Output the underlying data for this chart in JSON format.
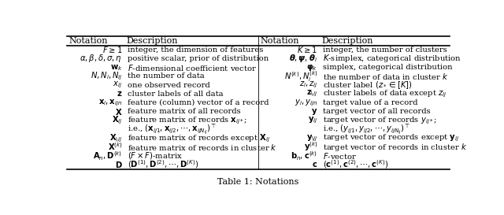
{
  "title": "Table 1: Notations",
  "left_rows": [
    [
      "$F \\geq 1$",
      "integer, the dimension of features"
    ],
    [
      "$\\alpha, \\beta, \\delta, \\sigma, \\eta$",
      "positive scalar, prior of distribution"
    ],
    [
      "$\\mathbf{w}_k$",
      "$F$-dimensional coefficient vector"
    ],
    [
      "$N, N_i, N_{ij}$",
      "the number of data"
    ],
    [
      "$x_{ij}$",
      "one observed record"
    ],
    [
      "$\\mathbf{z}$",
      "cluster labels of all data"
    ],
    [
      "$\\mathbf{x}_i, \\mathbf{x}_{ijn}$",
      "feature (column) vector of a record"
    ],
    [
      "$\\mathbf{X}$",
      "feature matrix of all records"
    ],
    [
      "$\\mathbf{X}_{ij}$",
      "feature matrix of records $\\mathbf{x}_{ij*}$;"
    ],
    [
      "",
      "i.e., $(\\mathbf{x}_{ij1}, \\mathbf{x}_{ij2}, \\cdots, \\mathbf{x}_{ijN_{ij}})^\\top$"
    ],
    [
      "$\\mathbf{X}_{\\backslash ij}$",
      "feature matrix of records except $\\mathbf{X}_{ij}$"
    ],
    [
      "$\\mathbf{X}^{(k)}$",
      "feature matrix of records in cluster $k$"
    ],
    [
      "$\\mathbf{A}_n, \\mathbf{D}^{(k)}$",
      "$(F \\times F)$-matrix"
    ],
    [
      "$\\mathbf{D}$",
      "$(\\mathbf{D}^{(1)}, \\mathbf{D}^{(2)}, \\cdots, \\mathbf{D}^{(K)})$"
    ]
  ],
  "right_rows": [
    [
      "$K \\geq 1$",
      "integer, the number of clusters"
    ],
    [
      "$\\boldsymbol{\\theta}, \\boldsymbol{\\psi}, \\boldsymbol{\\theta}_i$",
      "$K$-simplex, categorical distribution"
    ],
    [
      "$\\boldsymbol{\\varphi}_k$",
      "simplex, categorical distribution"
    ],
    [
      "$N^{(k)}, N_i^{(k)}$",
      "the number of data in cluster $k$"
    ],
    [
      "$z_i, z_{ij}$",
      "cluster label $(z_* \\in [K])$"
    ],
    [
      "$\\mathbf{z}_{\\backslash ij}$",
      "cluster labels of data except $z_{ij}$"
    ],
    [
      "$y_i, y_{ijn}$",
      "target value of a record"
    ],
    [
      "$\\mathbf{y}$",
      "target vector of all records"
    ],
    [
      "$\\mathbf{y}_{ij}$",
      "target vector of records $y_{ij*}$;"
    ],
    [
      "",
      "i.e., $(y_{ij1}, y_{ij2}, \\cdots, y_{ijN_{ij}})^\\top$"
    ],
    [
      "$\\mathbf{y}_{\\backslash ij}$",
      "target vector of records except $\\mathbf{y}_{ij}$"
    ],
    [
      "$\\mathbf{y}^{(k)}$",
      "target vector of records in cluster $k$"
    ],
    [
      "$\\mathbf{b}_n, \\mathbf{c}^{(k)}$",
      "$F$-vector"
    ],
    [
      "$\\mathbf{c}$",
      "$(\\mathbf{c}^{(1)}, \\mathbf{c}^{(2)}, \\cdots, \\mathbf{c}^{(K)})$"
    ]
  ],
  "col_headers": [
    "Notation",
    "Description",
    "Notation",
    "Description"
  ],
  "bg_color": "#ffffff",
  "line_color": "#000000",
  "text_color": "#000000",
  "fontsize_header": 8.0,
  "fontsize_data": 7.2,
  "fontsize_caption": 8.0
}
